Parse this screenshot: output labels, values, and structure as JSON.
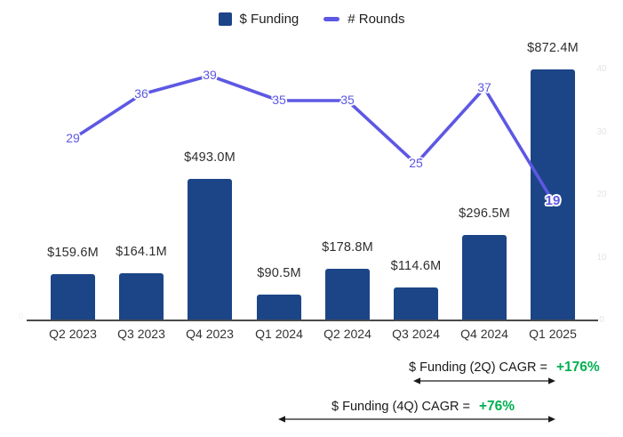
{
  "legend": {
    "items": [
      {
        "label": "$ Funding",
        "swatch": "square",
        "color": "#1C4587"
      },
      {
        "label": "# Rounds",
        "swatch": "line",
        "color": "#5D58E3"
      }
    ]
  },
  "colors": {
    "bar": "#1C4587",
    "line": "#5D58E3",
    "cagr_green": "#00B050",
    "axis": "#4a4a4a",
    "faint_tick": "#e3e3e3"
  },
  "chart_data": {
    "type": "bar",
    "subtype": "combo-bar-line",
    "title": "",
    "categories": [
      "Q2 2023",
      "Q3 2023",
      "Q4 2023",
      "Q1 2024",
      "Q2 2024",
      "Q3 2024",
      "Q4 2024",
      "Q1 2025"
    ],
    "series": [
      {
        "name": "$ Funding",
        "type": "bar",
        "color": "#1C4587",
        "values": [
          159.6,
          164.1,
          493.0,
          90.5,
          178.8,
          114.6,
          296.5,
          872.4
        ],
        "value_labels": [
          "$159.6M",
          "$164.1M",
          "$493.0M",
          "$90.5M",
          "$178.8M",
          "$114.6M",
          "$296.5M",
          "$872.4M"
        ]
      },
      {
        "name": "# Rounds",
        "type": "line",
        "color": "#5D58E3",
        "values": [
          29,
          36,
          39,
          35,
          35,
          25,
          37,
          19
        ],
        "point_labels": [
          "29",
          "36",
          "39",
          "35",
          "35",
          "25",
          "37",
          "19"
        ]
      }
    ],
    "right_axis": {
      "ticks": [
        "40",
        "30",
        "20",
        "10",
        "0"
      ],
      "range": [
        0,
        40
      ],
      "visible": "faint"
    },
    "left_axis": {
      "ticks": [
        "0"
      ],
      "visible": "faint"
    },
    "grid": "off",
    "legend_position": "top-center"
  },
  "annotations": [
    {
      "label": "$ Funding (2Q) CAGR = ",
      "value": "+176%"
    },
    {
      "label": "$ Funding (4Q) CAGR = ",
      "value": "+76%"
    }
  ]
}
